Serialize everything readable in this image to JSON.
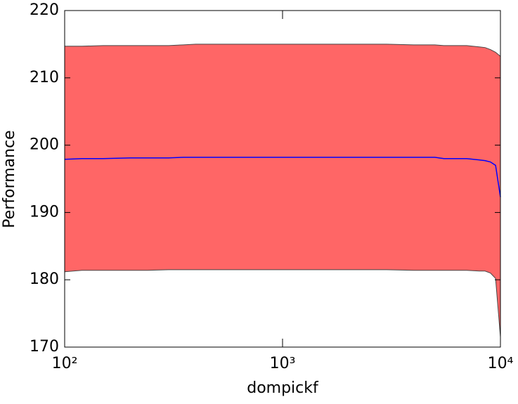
{
  "chart_data": {
    "type": "band-line",
    "xlabel": "dompickf",
    "ylabel": "Performance",
    "x": [
      100,
      120,
      150,
      200,
      240,
      300,
      350,
      400,
      450,
      500,
      700,
      1000,
      1500,
      2000,
      3000,
      4000,
      5000,
      5500,
      6000,
      7000,
      8000,
      8500,
      9000,
      9500,
      10000
    ],
    "line": {
      "color": "#0000ff",
      "values": [
        197.9,
        198.0,
        198.0,
        198.1,
        198.1,
        198.1,
        198.2,
        198.2,
        198.2,
        198.2,
        198.2,
        198.2,
        198.2,
        198.2,
        198.2,
        198.2,
        198.2,
        198.0,
        198.0,
        198.0,
        197.8,
        197.7,
        197.5,
        197.0,
        192.3
      ]
    },
    "band": {
      "color": "#ff6666",
      "edge_color": "#444444",
      "upper": [
        214.7,
        214.7,
        214.8,
        214.8,
        214.8,
        214.8,
        214.9,
        215.0,
        215.0,
        215.0,
        215.0,
        215.0,
        215.0,
        215.0,
        215.0,
        214.9,
        214.9,
        214.8,
        214.8,
        214.8,
        214.6,
        214.5,
        214.2,
        213.8,
        213.2
      ],
      "lower": [
        181.2,
        181.4,
        181.4,
        181.4,
        181.4,
        181.5,
        181.5,
        181.5,
        181.5,
        181.5,
        181.5,
        181.5,
        181.5,
        181.5,
        181.5,
        181.4,
        181.4,
        181.4,
        181.4,
        181.4,
        181.3,
        181.3,
        181.0,
        180.2,
        171.5
      ]
    },
    "xlog": true,
    "xlim": [
      100,
      10000
    ],
    "xticks": [
      {
        "value": 100,
        "label": "10²"
      },
      {
        "value": 1000,
        "label": "10³"
      },
      {
        "value": 10000,
        "label": "10⁴"
      }
    ],
    "ylim": [
      170,
      220
    ],
    "yticks": [
      170,
      180,
      190,
      200,
      210,
      220
    ]
  }
}
